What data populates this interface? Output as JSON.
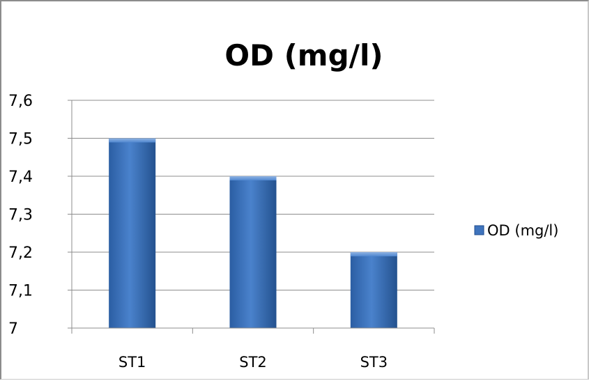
{
  "chart_data": {
    "type": "bar",
    "title": "OD (mg/l)",
    "xlabel": "",
    "ylabel": "",
    "categories": [
      "ST1",
      "ST2",
      "ST3"
    ],
    "series": [
      {
        "name": "OD (mg/l)",
        "values": [
          7.5,
          7.4,
          7.2
        ]
      }
    ],
    "ylim": [
      7.0,
      7.6
    ],
    "yticks": [
      7.0,
      7.1,
      7.2,
      7.3,
      7.4,
      7.5,
      7.6
    ],
    "ytick_labels": [
      "7",
      "7,1",
      "7,2",
      "7,3",
      "7,4",
      "7,5",
      "7,6"
    ],
    "grid": true,
    "legend": "right",
    "colors": {
      "bar": "#3f74bd",
      "bar_dark": "#1f4d8e",
      "bar_light": "#7fa6dc",
      "grid": "#8c8c8c"
    }
  }
}
